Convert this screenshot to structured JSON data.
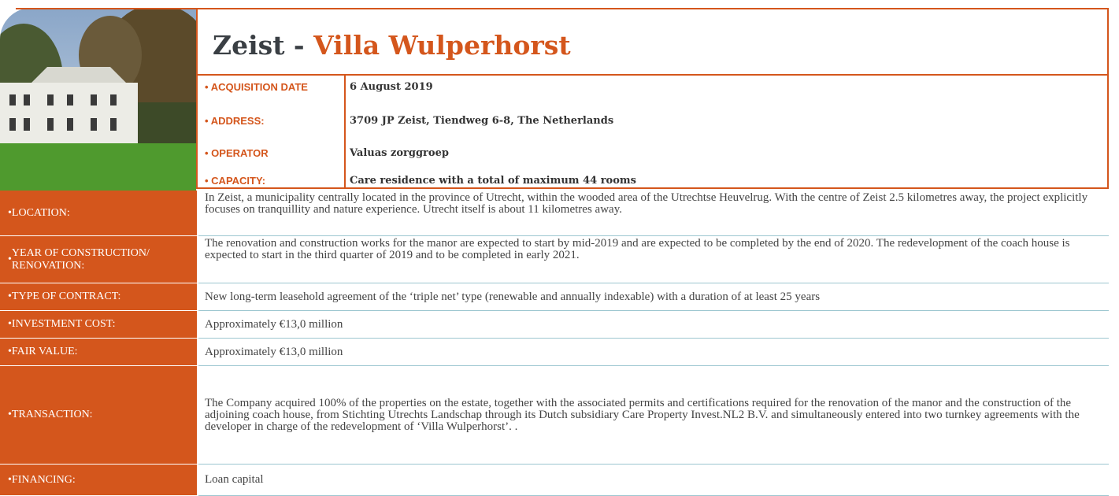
{
  "title": {
    "prefix": "Zeist -",
    "name": "Villa Wulperhorst"
  },
  "summary": [
    [
      "ACQUISITION DATE",
      "6 August 2019"
    ],
    [
      "ADDRESS:",
      "3709 JP Zeist, Tiendweg 6-8, The Netherlands"
    ],
    [
      "OPERATOR",
      "Valuas zorggroep"
    ],
    [
      "CAPACITY:",
      "Care residence with a total of maximum 44 rooms"
    ]
  ],
  "details": [
    [
      "LOCATION:",
      "In Zeist, a municipality centrally located in the province of Utrecht, within the wooded area of the Utrechtse Heuvelrug. With the centre of Zeist 2.5 kilometres away, the project explicitly focuses on tranquillity and nature experience. Utrecht itself is about 11 kilometres away."
    ],
    [
      "YEAR OF CONSTRUCTION/ RENOVATION:",
      "The renovation and construction works for the manor are expected to start by mid-2019 and are expected to be completed by the end of 2020. The redevelopment of the coach house is expected to start in the third quarter of 2019 and to be completed in early 2021."
    ],
    [
      "TYPE OF CONTRACT:",
      "New long-term leasehold agreement of the ‘triple net’ type (renewable and annually indexable) with a duration of at least 25 years"
    ],
    [
      "INVESTMENT COST:",
      "Approximately €13,0 million"
    ],
    [
      "FAIR VALUE:",
      "Approximately €13,0 million"
    ],
    [
      "TRANSACTION:",
      "The Company acquired 100% of the properties on the estate, together with the associated permits and certifications required for the renovation of the manor and the construction of the adjoining coach house, from Stichting Utrechts Landschap through its Dutch subsidiary Care Property Invest.NL2 B.V. and simultaneously entered into two turnkey agreements with the developer in charge of the redevelopment of ‘Villa Wulperhorst’. ."
    ],
    [
      "FINANCING:",
      "Loan capital"
    ]
  ]
}
